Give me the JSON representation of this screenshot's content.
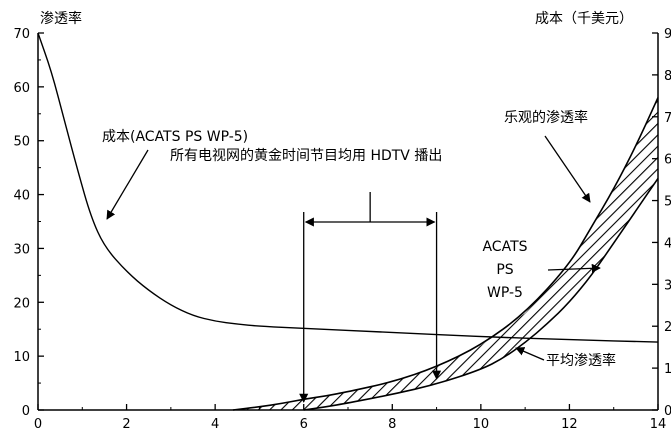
{
  "chart_data": {
    "type": "line",
    "y_left_label": "渗透率",
    "y_right_label": "成本（千美元）",
    "xlim": [
      0,
      14
    ],
    "ylim_left": [
      0,
      70
    ],
    "ylim_right": [
      0,
      9
    ],
    "x_ticks": [
      "0",
      "2",
      "4",
      "6",
      "8",
      "10",
      "12",
      "14"
    ],
    "y_left_ticks": [
      "0",
      "10",
      "20",
      "30",
      "40",
      "50",
      "60",
      "70"
    ],
    "y_right_ticks_visible": [
      "0",
      "1",
      "2",
      "3",
      "4",
      "5",
      "6",
      "7",
      "8",
      "9"
    ],
    "series": [
      {
        "name": "成本(ACATS PS WP-5)",
        "axis": "right",
        "x": [
          0,
          0.3,
          0.6,
          0.9,
          1.2,
          1.5,
          2.0,
          2.5,
          3.0,
          3.5,
          4.0,
          4.5,
          5.0,
          6.0,
          8.0,
          10.0,
          12.0,
          14.0
        ],
        "y": [
          9.0,
          8.1,
          6.9,
          5.7,
          4.6,
          3.9,
          3.3,
          2.85,
          2.5,
          2.25,
          2.12,
          2.05,
          2.0,
          1.95,
          1.85,
          1.75,
          1.68,
          1.62
        ]
      },
      {
        "name": "乐观的渗透率",
        "axis": "left",
        "x": [
          4.4,
          5.0,
          5.5,
          6.0,
          6.5,
          7.0,
          8.0,
          9.0,
          10.0,
          11.0,
          12.0,
          12.5,
          13.0,
          13.5,
          14.0
        ],
        "y": [
          0,
          0.6,
          1.2,
          2.0,
          2.6,
          3.4,
          5.2,
          8.0,
          12.0,
          18.0,
          27.0,
          34.0,
          41.0,
          49.0,
          58.0
        ]
      },
      {
        "name": "平均渗透率",
        "axis": "left",
        "x": [
          6.0,
          6.5,
          7.0,
          8.0,
          9.0,
          10.0,
          10.5,
          11.0,
          11.5,
          12.0,
          12.5,
          13.0,
          13.5,
          14.0
        ],
        "y": [
          0,
          0.6,
          1.3,
          2.9,
          4.8,
          7.5,
          9.6,
          12.5,
          16.0,
          20.0,
          25.0,
          31.0,
          37.0,
          43.0
        ]
      }
    ],
    "range_bracket": {
      "label": "所有电视网的黄金时间节目均用 HDTV 播出",
      "x_start": 6,
      "x_end": 9
    },
    "annotations": {
      "cost": "成本(ACATS PS WP-5)",
      "optimistic": "乐观的渗透率",
      "acats_lines": [
        "ACATS",
        "PS",
        "WP-5"
      ],
      "average": "平均渗透率"
    }
  }
}
